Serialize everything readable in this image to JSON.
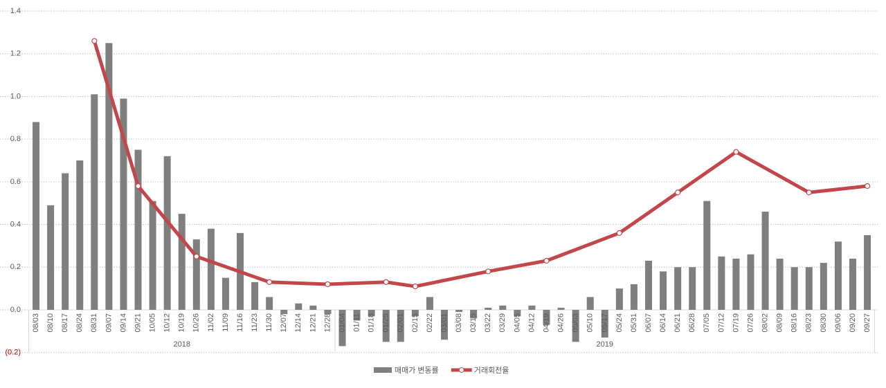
{
  "chart_data": {
    "type": "bar-line",
    "groups": [
      {
        "name": "2018",
        "categories": [
          "08/03",
          "08/10",
          "08/17",
          "08/24",
          "08/31",
          "09/07",
          "09/14",
          "09/21",
          "10/05",
          "10/12",
          "10/19",
          "10/26",
          "11/02",
          "11/09",
          "11/16",
          "11/23",
          "11/30",
          "12/07",
          "12/14",
          "12/21",
          "12/28"
        ]
      },
      {
        "name": "2019",
        "categories": [
          "01/04",
          "01/11",
          "01/18",
          "01/25",
          "02/01",
          "02/15",
          "02/22",
          "03/01",
          "03/08",
          "03/15",
          "03/22",
          "03/29",
          "04/05",
          "04/12",
          "04/19",
          "04/26",
          "05/03",
          "05/10",
          "05/17",
          "05/24",
          "05/31",
          "06/07",
          "06/14",
          "06/21",
          "06/28",
          "07/05",
          "07/12",
          "07/19",
          "07/26",
          "08/02",
          "08/09",
          "08/16",
          "08/23",
          "08/30",
          "09/06",
          "09/20",
          "09/27"
        ]
      }
    ],
    "series": [
      {
        "name": "매매가 변동률",
        "kind": "bar",
        "color": "#7f7f7f",
        "values": [
          0.88,
          0.49,
          0.64,
          0.7,
          1.01,
          1.25,
          0.99,
          0.75,
          0.51,
          0.72,
          0.45,
          0.33,
          0.38,
          0.15,
          0.36,
          0.13,
          0.06,
          -0.02,
          0.03,
          0.02,
          -0.02,
          -0.17,
          -0.05,
          -0.03,
          -0.15,
          -0.15,
          -0.03,
          0.06,
          -0.14,
          -0.01,
          -0.04,
          0.01,
          0.02,
          -0.03,
          0.02,
          -0.07,
          0.01,
          -0.15,
          0.06,
          -0.13,
          0.1,
          0.12,
          0.23,
          0.18,
          0.2,
          0.2,
          0.51,
          0.25,
          0.24,
          0.26,
          0.46,
          0.24,
          0.2,
          0.2,
          0.22,
          0.32,
          0.24,
          0.35
        ]
      },
      {
        "name": "거래회전율",
        "kind": "line",
        "color": "#c3474a",
        "connect_gaps": true,
        "values": [
          null,
          null,
          null,
          null,
          1.26,
          null,
          null,
          0.58,
          null,
          null,
          null,
          0.25,
          null,
          null,
          null,
          null,
          0.13,
          null,
          null,
          null,
          0.12,
          null,
          null,
          null,
          0.13,
          null,
          0.11,
          null,
          null,
          null,
          null,
          0.18,
          null,
          null,
          null,
          0.23,
          null,
          null,
          null,
          null,
          0.36,
          null,
          null,
          null,
          0.55,
          null,
          null,
          null,
          0.74,
          null,
          null,
          null,
          null,
          0.55,
          null,
          null,
          null,
          0.58
        ]
      }
    ],
    "ylim": [
      -0.2,
      1.4
    ],
    "yticks": [
      {
        "value": -0.2,
        "label": "(0.2)"
      },
      {
        "value": 0,
        "label": "0.0"
      },
      0.2,
      0.4,
      0.6,
      0.8,
      {
        "value": 1,
        "label": "1.0"
      },
      1.2,
      1.4
    ],
    "grid": true,
    "legend": "bottom"
  }
}
